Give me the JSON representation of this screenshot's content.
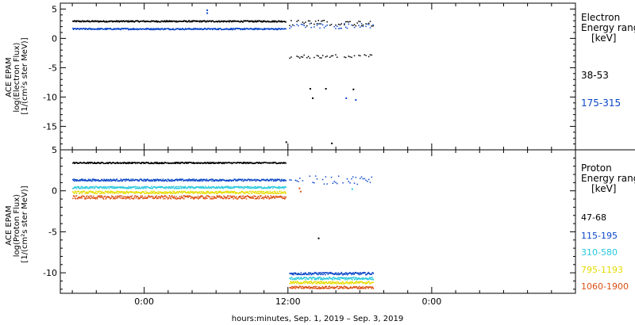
{
  "chart_data": [
    {
      "type": "scatter",
      "panel": "electron",
      "ylabel_lines": [
        "ACE EPAM",
        "log(Electron Flux)",
        "[1/(cm²s ster MeV)]"
      ],
      "ylim": [
        -19,
        6
      ],
      "yticks": [
        5,
        0,
        -5,
        -10,
        -15
      ],
      "legend_title_lines": [
        "Electron",
        "Energy ranges",
        "[keV]"
      ],
      "series": [
        {
          "name": "38-53",
          "color": "#000000",
          "segments": [
            {
              "x": [
                -6,
                11.8
              ],
              "y": 2.9,
              "jitter": 0.12
            },
            {
              "x": [
                12.1,
                19.1
              ],
              "y": 2.6,
              "jitter": 0.5,
              "sparse": true
            },
            {
              "x": [
                12.1,
                19.1
              ],
              "y": -3.1,
              "jitter": 0.3,
              "sparse": true
            }
          ],
          "outliers": [
            [
              11.8,
              -17.7
            ],
            [
              15.6,
              -17.9
            ],
            [
              13.8,
              -8.6
            ],
            [
              15.1,
              -8.6
            ],
            [
              14.0,
              -10.2
            ],
            [
              17.4,
              -8.7
            ]
          ]
        },
        {
          "name": "175-315",
          "color": "#0a46c8",
          "segments": [
            {
              "x": [
                -6,
                11.8
              ],
              "y": 1.6,
              "jitter": 0.12
            },
            {
              "x": [
                12.1,
                19.1
              ],
              "y": 2.1,
              "jitter": 0.45,
              "sparse": true
            }
          ],
          "outliers": [
            [
              5.2,
              4.8
            ],
            [
              5.2,
              4.3
            ],
            [
              16.8,
              -10.2
            ],
            [
              17.6,
              -10.5
            ]
          ]
        }
      ]
    },
    {
      "type": "scatter",
      "panel": "proton",
      "ylabel_lines": [
        "ACE EPAM",
        "log(Proton Flux)",
        "[1/(cm²s ster MeV)]"
      ],
      "ylim": [
        -12.5,
        5
      ],
      "yticks": [
        5,
        0,
        -5,
        -10
      ],
      "legend_title_lines": [
        "Proton",
        "Energy ranges",
        "[keV]"
      ],
      "series": [
        {
          "name": "47-68",
          "color": "#000000",
          "segments": [
            {
              "x": [
                -6,
                11.8
              ],
              "y": 3.4,
              "jitter": 0.08
            }
          ],
          "outliers": [
            [
              14.5,
              -5.8
            ]
          ]
        },
        {
          "name": "115-195",
          "color": "#0a46c8",
          "segments": [
            {
              "x": [
                -6,
                11.8
              ],
              "y": 1.3,
              "jitter": 0.12
            },
            {
              "x": [
                12.1,
                19.1
              ],
              "y": 1.3,
              "jitter": 0.5,
              "sparse": true
            },
            {
              "x": [
                12.1,
                19.1
              ],
              "y": -10.1,
              "jitter": 0.15
            }
          ],
          "outliers": []
        },
        {
          "name": "310-580",
          "color": "#28c8dc",
          "segments": [
            {
              "x": [
                -6,
                11.8
              ],
              "y": 0.4,
              "jitter": 0.12
            },
            {
              "x": [
                12.1,
                19.1
              ],
              "y": -10.7,
              "jitter": 0.15
            }
          ],
          "outliers": [
            [
              17.3,
              0.2
            ]
          ]
        },
        {
          "name": "795-1193",
          "color": "#e6dc00",
          "segments": [
            {
              "x": [
                -6,
                11.8
              ],
              "y": -0.2,
              "jitter": 0.15
            },
            {
              "x": [
                12.1,
                19.1
              ],
              "y": -11.2,
              "jitter": 0.15
            }
          ],
          "outliers": []
        },
        {
          "name": "1060-1900",
          "color": "#dc5014",
          "segments": [
            {
              "x": [
                -6,
                11.8
              ],
              "y": -0.8,
              "jitter": 0.2
            },
            {
              "x": [
                12.1,
                19.1
              ],
              "y": -11.8,
              "jitter": 0.15
            }
          ],
          "outliers": [
            [
              13.0,
              -0.1
            ],
            [
              12.9,
              0.3
            ]
          ]
        }
      ]
    }
  ],
  "x_axis": {
    "label": "hours:minutes, Sep.  1, 2019 – Sep.  3, 2019",
    "range_hours": [
      -7,
      36
    ],
    "ticks": [
      {
        "hour": 0,
        "label": "0:00"
      },
      {
        "hour": 12,
        "label": "12:00"
      },
      {
        "hour": 24,
        "label": "0:00"
      }
    ],
    "minor_step_hours": 2
  }
}
